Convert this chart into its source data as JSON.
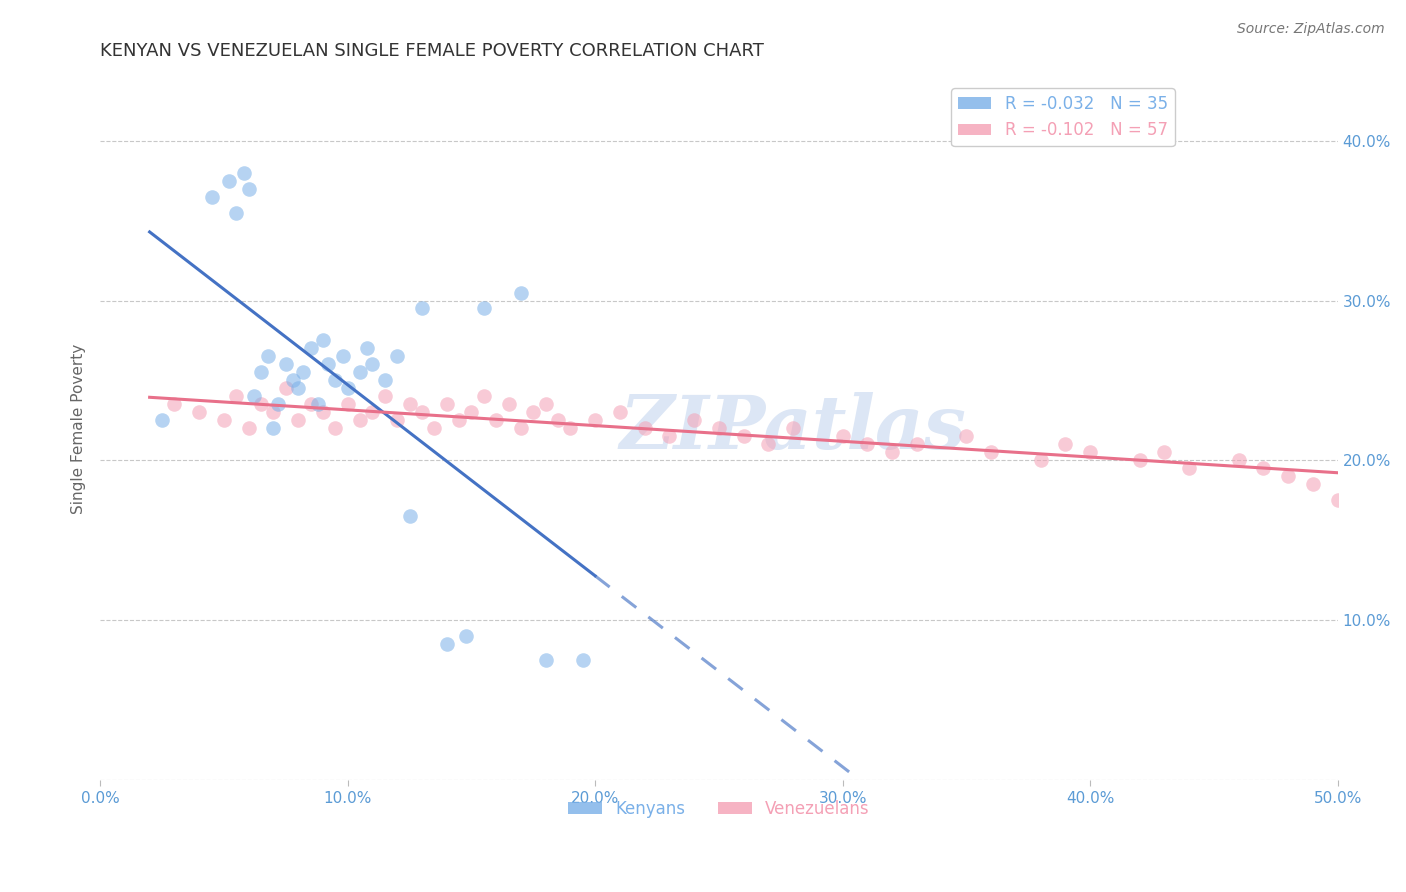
{
  "title": "KENYAN VS VENEZUELAN SINGLE FEMALE POVERTY CORRELATION CHART",
  "source": "Source: ZipAtlas.com",
  "ylabel_label": "Single Female Poverty",
  "x_ticks": [
    0.0,
    0.1,
    0.2,
    0.3,
    0.4,
    0.5
  ],
  "x_tick_labels": [
    "0.0%",
    "10.0%",
    "20.0%",
    "30.0%",
    "40.0%",
    "50.0%"
  ],
  "y_ticks": [
    0.0,
    0.1,
    0.2,
    0.3,
    0.4
  ],
  "y_tick_labels_right": [
    "",
    "10.0%",
    "20.0%",
    "30.0%",
    "40.0%"
  ],
  "xlim": [
    0.0,
    0.5
  ],
  "ylim": [
    0.0,
    0.44
  ],
  "legend_entries": [
    {
      "label": "R = -0.032   N = 35",
      "color": "#7ab0e8"
    },
    {
      "label": "R = -0.102   N = 57",
      "color": "#f4a0b5"
    }
  ],
  "background_color": "#ffffff",
  "grid_color": "#c8c8c8",
  "title_color": "#333333",
  "axis_tick_color": "#5b9bd5",
  "watermark_text": "ZIPatlas",
  "watermark_color": "#dce6f5",
  "kenyan_x": [
    0.025,
    0.045,
    0.052,
    0.055,
    0.058,
    0.06,
    0.062,
    0.065,
    0.068,
    0.07,
    0.072,
    0.075,
    0.078,
    0.08,
    0.082,
    0.085,
    0.088,
    0.09,
    0.092,
    0.095,
    0.098,
    0.1,
    0.105,
    0.108,
    0.11,
    0.115,
    0.12,
    0.125,
    0.13,
    0.14,
    0.148,
    0.155,
    0.17,
    0.18,
    0.195
  ],
  "kenyan_y": [
    0.225,
    0.365,
    0.375,
    0.355,
    0.38,
    0.37,
    0.24,
    0.255,
    0.265,
    0.22,
    0.235,
    0.26,
    0.25,
    0.245,
    0.255,
    0.27,
    0.235,
    0.275,
    0.26,
    0.25,
    0.265,
    0.245,
    0.255,
    0.27,
    0.26,
    0.25,
    0.265,
    0.165,
    0.295,
    0.085,
    0.09,
    0.295,
    0.305,
    0.075,
    0.075
  ],
  "venezuelan_x": [
    0.03,
    0.04,
    0.05,
    0.055,
    0.06,
    0.065,
    0.07,
    0.075,
    0.08,
    0.085,
    0.09,
    0.095,
    0.1,
    0.105,
    0.11,
    0.115,
    0.12,
    0.125,
    0.13,
    0.135,
    0.14,
    0.145,
    0.15,
    0.155,
    0.16,
    0.165,
    0.17,
    0.175,
    0.18,
    0.185,
    0.19,
    0.2,
    0.21,
    0.22,
    0.23,
    0.24,
    0.25,
    0.26,
    0.27,
    0.28,
    0.3,
    0.31,
    0.32,
    0.33,
    0.35,
    0.36,
    0.38,
    0.39,
    0.4,
    0.42,
    0.43,
    0.44,
    0.46,
    0.47,
    0.48,
    0.49,
    0.5
  ],
  "venezuelan_y": [
    0.235,
    0.23,
    0.225,
    0.24,
    0.22,
    0.235,
    0.23,
    0.245,
    0.225,
    0.235,
    0.23,
    0.22,
    0.235,
    0.225,
    0.23,
    0.24,
    0.225,
    0.235,
    0.23,
    0.22,
    0.235,
    0.225,
    0.23,
    0.24,
    0.225,
    0.235,
    0.22,
    0.23,
    0.235,
    0.225,
    0.22,
    0.225,
    0.23,
    0.22,
    0.215,
    0.225,
    0.22,
    0.215,
    0.21,
    0.22,
    0.215,
    0.21,
    0.205,
    0.21,
    0.215,
    0.205,
    0.2,
    0.21,
    0.205,
    0.2,
    0.205,
    0.195,
    0.2,
    0.195,
    0.19,
    0.185,
    0.175
  ],
  "kenyan_color": "#7ab0e8",
  "venezuelan_color": "#f4a0b5",
  "kenyan_line_color": "#4472c4",
  "venezuelan_line_color": "#e8708a",
  "dot_size": 110,
  "dot_alpha": 0.55,
  "line_width": 2.2
}
